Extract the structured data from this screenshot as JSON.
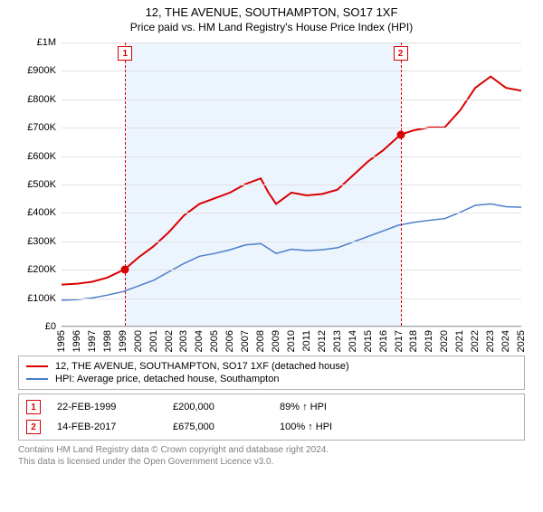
{
  "title_line1": "12, THE AVENUE, SOUTHAMPTON, SO17 1XF",
  "title_line2": "Price paid vs. HM Land Registry's House Price Index (HPI)",
  "title_fontsize": 13,
  "subtitle_fontsize": 12,
  "chart": {
    "type": "line",
    "background_color": "#ffffff",
    "grid_color": "#e2e2e2",
    "axis_color": "#9ba3a9",
    "tick_fontsize": 11,
    "x_min": 1995,
    "x_max": 2025,
    "x_step": 1,
    "y_min": 0,
    "y_max": 1000000,
    "y_step": 100000,
    "y_tick_labels": [
      "£0",
      "£100K",
      "£200K",
      "£300K",
      "£400K",
      "£500K",
      "£600K",
      "£700K",
      "£800K",
      "£900K",
      "£1M"
    ],
    "shaded_region": {
      "x_from": 1999.15,
      "x_to": 2017.12,
      "fill": "#ecf4fe"
    },
    "series": [
      {
        "name": "property",
        "label": "12, THE AVENUE, SOUTHAMPTON, SO17 1XF (detached house)",
        "color": "#d90000",
        "line_width": 2,
        "points": [
          [
            1995,
            145000
          ],
          [
            1996,
            148000
          ],
          [
            1997,
            155000
          ],
          [
            1998,
            170000
          ],
          [
            1999.15,
            200000
          ],
          [
            2000,
            240000
          ],
          [
            2001,
            280000
          ],
          [
            2002,
            330000
          ],
          [
            2003,
            390000
          ],
          [
            2004,
            430000
          ],
          [
            2005,
            450000
          ],
          [
            2006,
            470000
          ],
          [
            2007,
            500000
          ],
          [
            2008,
            520000
          ],
          [
            2008.5,
            470000
          ],
          [
            2009,
            430000
          ],
          [
            2010,
            470000
          ],
          [
            2011,
            460000
          ],
          [
            2012,
            465000
          ],
          [
            2013,
            480000
          ],
          [
            2014,
            530000
          ],
          [
            2015,
            580000
          ],
          [
            2016,
            620000
          ],
          [
            2017.12,
            675000
          ],
          [
            2018,
            690000
          ],
          [
            2019,
            700000
          ],
          [
            2020,
            700000
          ],
          [
            2021,
            760000
          ],
          [
            2022,
            840000
          ],
          [
            2023,
            880000
          ],
          [
            2024,
            840000
          ],
          [
            2025,
            830000
          ]
        ]
      },
      {
        "name": "hpi",
        "label": "HPI: Average price, detached house, Southampton",
        "color": "#4a7ec8",
        "line_width": 1.5,
        "points": [
          [
            1995,
            90000
          ],
          [
            1996,
            92000
          ],
          [
            1997,
            98000
          ],
          [
            1998,
            108000
          ],
          [
            1999,
            120000
          ],
          [
            2000,
            140000
          ],
          [
            2001,
            160000
          ],
          [
            2002,
            190000
          ],
          [
            2003,
            220000
          ],
          [
            2004,
            245000
          ],
          [
            2005,
            255000
          ],
          [
            2006,
            268000
          ],
          [
            2007,
            285000
          ],
          [
            2008,
            290000
          ],
          [
            2009,
            255000
          ],
          [
            2010,
            270000
          ],
          [
            2011,
            265000
          ],
          [
            2012,
            268000
          ],
          [
            2013,
            275000
          ],
          [
            2014,
            295000
          ],
          [
            2015,
            315000
          ],
          [
            2016,
            335000
          ],
          [
            2017,
            355000
          ],
          [
            2018,
            365000
          ],
          [
            2019,
            372000
          ],
          [
            2020,
            378000
          ],
          [
            2021,
            400000
          ],
          [
            2022,
            425000
          ],
          [
            2023,
            430000
          ],
          [
            2024,
            420000
          ],
          [
            2025,
            418000
          ]
        ]
      }
    ],
    "markers": [
      {
        "id": "1",
        "x": 1999.15,
        "y": 200000,
        "color": "#d90000"
      },
      {
        "id": "2",
        "x": 2017.12,
        "y": 675000,
        "color": "#d90000"
      }
    ],
    "marker_dash_color": "#d90000"
  },
  "legend": {
    "fontsize": 11,
    "items": [
      {
        "color": "#d90000",
        "label": "12, THE AVENUE, SOUTHAMPTON, SO17 1XF (detached house)"
      },
      {
        "color": "#4a7ec8",
        "label": "HPI: Average price, detached house, Southampton"
      }
    ]
  },
  "marker_rows": [
    {
      "id": "1",
      "color": "#d90000",
      "date": "22-FEB-1999",
      "price": "£200,000",
      "pct": "89% ↑ HPI"
    },
    {
      "id": "2",
      "color": "#d90000",
      "date": "14-FEB-2017",
      "price": "£675,000",
      "pct": "100% ↑ HPI"
    }
  ],
  "marker_fontsize": 11,
  "footer_line1": "Contains HM Land Registry data © Crown copyright and database right 2024.",
  "footer_line2": "This data is licensed under the Open Government Licence v3.0.",
  "footer_fontsize": 10
}
